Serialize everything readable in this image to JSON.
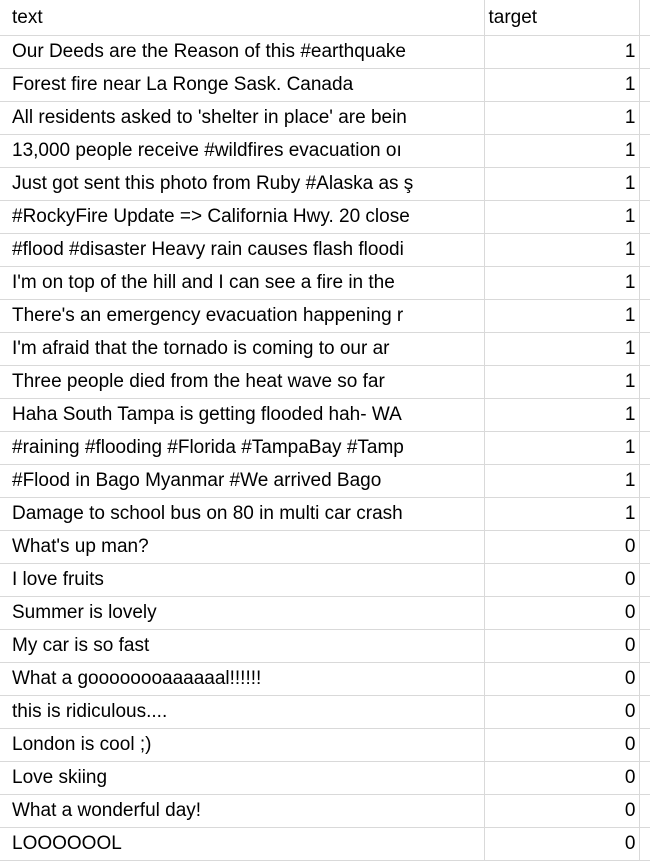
{
  "columns": {
    "text": "text",
    "target": "target"
  },
  "rows": [
    {
      "text": "Our Deeds are the Reason of this #earthquake",
      "target": "1"
    },
    {
      "text": "Forest fire near La Ronge Sask. Canada",
      "target": "1"
    },
    {
      "text": "All residents asked to 'shelter in place' are bein",
      "target": "1"
    },
    {
      "text": "13,000 people receive #wildfires evacuation oı",
      "target": "1"
    },
    {
      "text": "Just got sent this photo from Ruby #Alaska as ş",
      "target": "1"
    },
    {
      "text": "#RockyFire Update => California Hwy. 20 close",
      "target": "1"
    },
    {
      "text": "#flood #disaster Heavy rain causes flash floodi",
      "target": "1"
    },
    {
      "text": "I'm on top of the hill and I can see a fire in the",
      "target": "1"
    },
    {
      "text": "There's an emergency evacuation happening r",
      "target": "1"
    },
    {
      "text": "I'm afraid that the tornado is coming to our ar",
      "target": "1"
    },
    {
      "text": "Three people died from the heat wave so far",
      "target": "1"
    },
    {
      "text": "Haha South Tampa is getting flooded hah- WA",
      "target": "1"
    },
    {
      "text": "#raining #flooding #Florida #TampaBay #Tamp",
      "target": "1"
    },
    {
      "text": "#Flood in Bago Myanmar #We arrived Bago",
      "target": "1"
    },
    {
      "text": "Damage to school bus on 80 in multi car crash",
      "target": "1"
    },
    {
      "text": "What's up man?",
      "target": "0"
    },
    {
      "text": "I love fruits",
      "target": "0"
    },
    {
      "text": "Summer is lovely",
      "target": "0"
    },
    {
      "text": "My car is so fast",
      "target": "0"
    },
    {
      "text": "What a goooooooaaaaaal!!!!!!",
      "target": "0"
    },
    {
      "text": "this is ridiculous....",
      "target": "0"
    },
    {
      "text": "London is cool ;)",
      "target": "0"
    },
    {
      "text": "Love skiing",
      "target": "0"
    },
    {
      "text": "What a wonderful day!",
      "target": "0"
    },
    {
      "text": "LOOOOOOL",
      "target": "0"
    }
  ]
}
